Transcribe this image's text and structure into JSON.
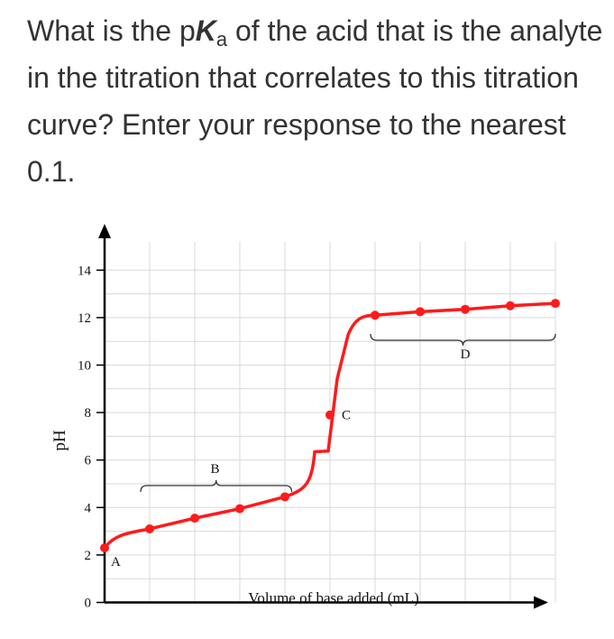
{
  "question": {
    "part1": "What is the p",
    "K": "K",
    "sub": "a",
    "part2": " of the acid that is the analyte in the titration that correlates to this titration curve? Enter your response to the nearest 0.1."
  },
  "chart_data": {
    "type": "line",
    "title": "",
    "xlabel": "Volume of base added (mL)",
    "ylabel": "pH",
    "ylim": [
      0,
      14
    ],
    "yticks": [
      0,
      2,
      4,
      6,
      8,
      10,
      12,
      14
    ],
    "ytick_labels": [
      "0",
      "2",
      "4",
      "6",
      "8",
      "10",
      "12",
      "14"
    ],
    "grid": true,
    "line_color": "#ff1a1a",
    "series": [
      {
        "points": [
          {
            "x": 0,
            "y": 2.3
          },
          {
            "x": 1,
            "y": 3.1
          },
          {
            "x": 2,
            "y": 3.55
          },
          {
            "x": 3,
            "y": 3.95
          },
          {
            "x": 4,
            "y": 4.45
          },
          {
            "x": 5,
            "y": 7.9
          },
          {
            "x": 6,
            "y": 12.1
          },
          {
            "x": 7,
            "y": 12.25
          },
          {
            "x": 8,
            "y": 12.35
          },
          {
            "x": 9,
            "y": 12.5
          },
          {
            "x": 10,
            "y": 12.6
          }
        ]
      }
    ],
    "annotations": [
      {
        "label": "A"
      },
      {
        "label": "B"
      },
      {
        "label": "C"
      },
      {
        "label": "D"
      }
    ]
  }
}
